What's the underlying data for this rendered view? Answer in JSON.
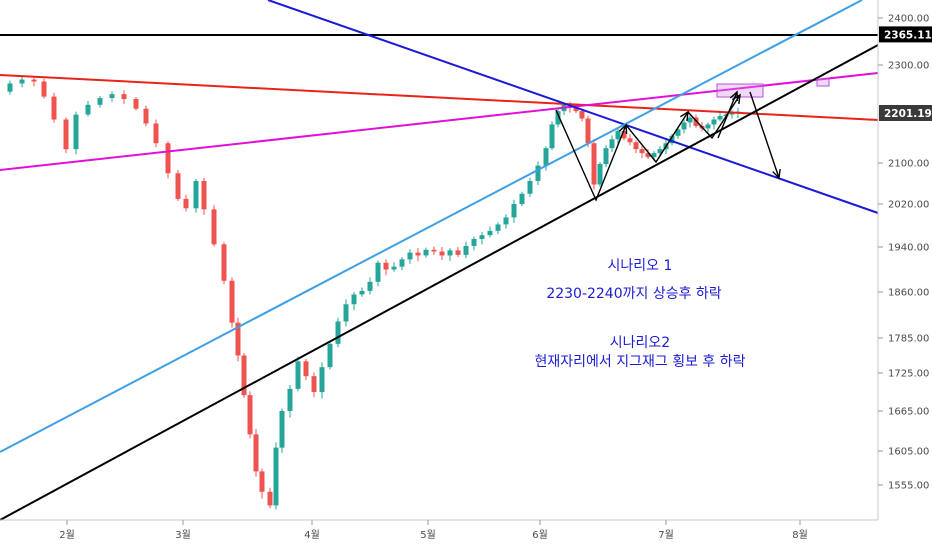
{
  "chart_data": {
    "type": "candlestick",
    "y_ticks": [
      "2400.00",
      "2300.00",
      "2100.00",
      "2020.00",
      "1940.00",
      "1860.00",
      "1785.00",
      "1725.00",
      "1665.00",
      "1605.00",
      "1555.00"
    ],
    "y_tick_values": [
      2400,
      2300,
      2100,
      2020,
      1940,
      1860,
      1785,
      1725,
      1665,
      1605,
      1555
    ],
    "x_ticks": [
      "2월",
      "3월",
      "4월",
      "5월",
      "6월",
      "7월",
      "8월"
    ],
    "price_badges": [
      {
        "label": "2365.11",
        "value": 2365.11,
        "color": "#000000"
      },
      {
        "label": "2201.19",
        "value": 2201.19,
        "color": "#3a3a3a"
      }
    ],
    "annotations": [
      "시나리오 1",
      "2230-2240까지 상승후 하락",
      "시나리오2",
      "현재자리에서 지그재그 횡보 후 하락"
    ],
    "colors": {
      "up": "#26a69a",
      "down": "#ef5350"
    }
  }
}
